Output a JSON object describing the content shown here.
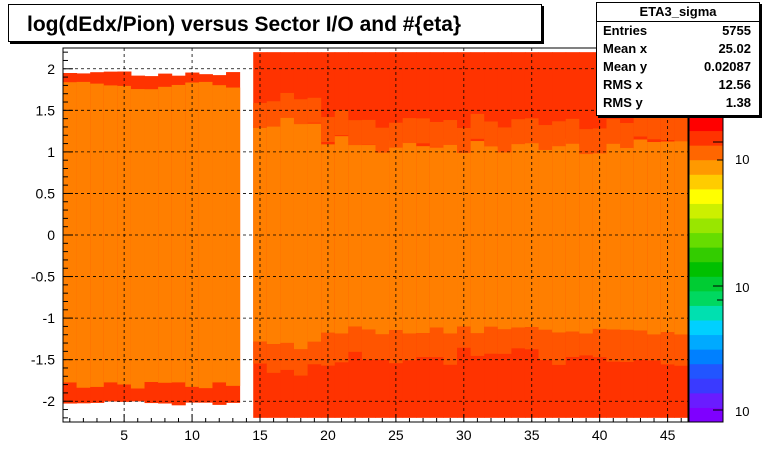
{
  "title": "log(dEdx/Pion) versus Sector I/O and #{eta}",
  "stats": {
    "name": "ETA3_sigma",
    "rows": [
      {
        "key": "Entries",
        "value": "5755"
      },
      {
        "key": "Mean x",
        "value": "25.02"
      },
      {
        "key": "Mean y",
        "value": "0.02087"
      },
      {
        "key": "RMS x",
        "value": "12.56"
      },
      {
        "key": "RMS y",
        "value": "1.38"
      }
    ]
  },
  "zaxis_labels": [
    "10",
    "10",
    "10"
  ],
  "chart_data": {
    "type": "heatmap",
    "xlim": [
      0.5,
      46.5
    ],
    "ylim": [
      -2.25,
      2.25
    ],
    "xticks": [
      5,
      10,
      15,
      20,
      25,
      30,
      35,
      40,
      45
    ],
    "yticks": [
      -2,
      -1.5,
      -1,
      -0.5,
      0,
      0.5,
      1,
      1.5,
      2
    ],
    "grid": true,
    "empty_x": [
      13.5,
      14.0
    ],
    "bands": [
      {
        "level": "core",
        "color": "#ff7f00",
        "y_from": -1.8,
        "y_to": 1.85
      },
      {
        "level": "edge",
        "color": "#ff3300",
        "y_from": -2.2,
        "y_to": 2.2
      }
    ],
    "palette": [
      "#7f00ff",
      "#6a1cff",
      "#3a3aff",
      "#2255ff",
      "#0080ff",
      "#00aaff",
      "#00d0ff",
      "#00e0b0",
      "#00d860",
      "#00cc33",
      "#00c000",
      "#33cc00",
      "#66dd00",
      "#99e600",
      "#ccf000",
      "#ffff00",
      "#ffcc00",
      "#ff9900",
      "#ff6600",
      "#ff3300",
      "#ff0000"
    ]
  }
}
